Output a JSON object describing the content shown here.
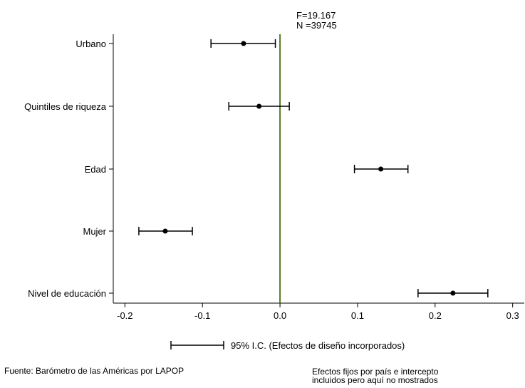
{
  "chart_data": {
    "type": "scatter",
    "subtype": "coefficient-plot",
    "stats": [
      "F=19.167",
      "N =39745"
    ],
    "categories": [
      "Urbano",
      "Quintiles de riqueza",
      "Edad",
      "Mujer",
      "Nivel de educación"
    ],
    "estimates": [
      -0.047,
      -0.027,
      0.13,
      -0.148,
      0.223
    ],
    "ci_low": [
      -0.089,
      -0.066,
      0.096,
      -0.182,
      0.178
    ],
    "ci_high": [
      -0.006,
      0.012,
      0.165,
      -0.113,
      0.268
    ],
    "xlim": [
      -0.215,
      0.315
    ],
    "xticks": [
      -0.2,
      -0.1,
      0.0,
      0.1,
      0.2,
      0.3
    ],
    "xtick_labels": [
      "-0.2",
      "-0.1",
      "0.0",
      "0.1",
      "0.2",
      "0.3"
    ],
    "reference_line": 0.0,
    "reference_line_color": "#5a7a2a",
    "legend": {
      "label": "95% I.C. (Efectos de diseño incorporados)",
      "position": "bottom"
    },
    "grid": false
  },
  "notes": {
    "source": "Fuente: Barómetro de las Américas por LAPOP",
    "fixed_effects": [
      "Efectos fijos por país e intercepto",
      "incluidos pero aquí no mostrados"
    ]
  }
}
